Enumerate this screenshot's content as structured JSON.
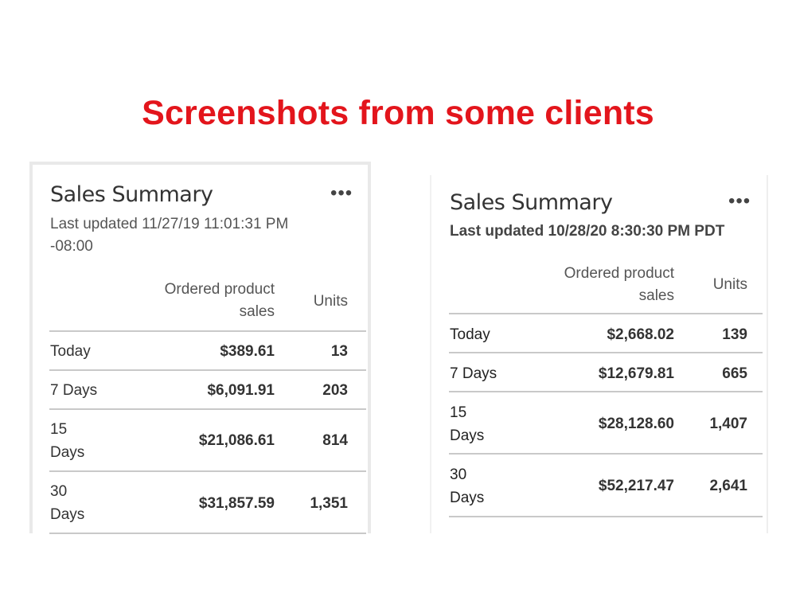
{
  "slide": {
    "title": "Screenshots from some clients"
  },
  "cards": [
    {
      "title": "Sales Summary",
      "more_icon": "more-horizontal-icon",
      "last_updated_line1": "Last updated  11/27/19  11:01:31  PM",
      "last_updated_line2": "-08:00",
      "columns": {
        "sales_line1": "Ordered product",
        "sales_line2": "sales",
        "units": "Units"
      },
      "rows": [
        {
          "label_line1": "Today",
          "label_line2": "",
          "sales": "$389.61",
          "units": "13"
        },
        {
          "label_line1": "7 Days",
          "label_line2": "",
          "sales": "$6,091.91",
          "units": "203"
        },
        {
          "label_line1": "15",
          "label_line2": "Days",
          "sales": "$21,086.61",
          "units": "814"
        },
        {
          "label_line1": "30",
          "label_line2": "Days",
          "sales": "$31,857.59",
          "units": "1,351"
        }
      ]
    },
    {
      "title": "Sales Summary",
      "more_icon": "more-horizontal-icon",
      "last_updated_line1": "Last updated 10/28/20  8:30:30  PM PDT",
      "last_updated_line2": "",
      "columns": {
        "sales_line1": "Ordered product",
        "sales_line2": "sales",
        "units": "Units"
      },
      "rows": [
        {
          "label_line1": "Today",
          "label_line2": "",
          "sales": "$2,668.02",
          "units": "139"
        },
        {
          "label_line1": "7 Days",
          "label_line2": "",
          "sales": "$12,679.81",
          "units": "665"
        },
        {
          "label_line1": "15",
          "label_line2": "Days",
          "sales": "$28,128.60",
          "units": "1,407"
        },
        {
          "label_line1": "30",
          "label_line2": "Days",
          "sales": "$52,217.47",
          "units": "2,641"
        }
      ]
    }
  ]
}
